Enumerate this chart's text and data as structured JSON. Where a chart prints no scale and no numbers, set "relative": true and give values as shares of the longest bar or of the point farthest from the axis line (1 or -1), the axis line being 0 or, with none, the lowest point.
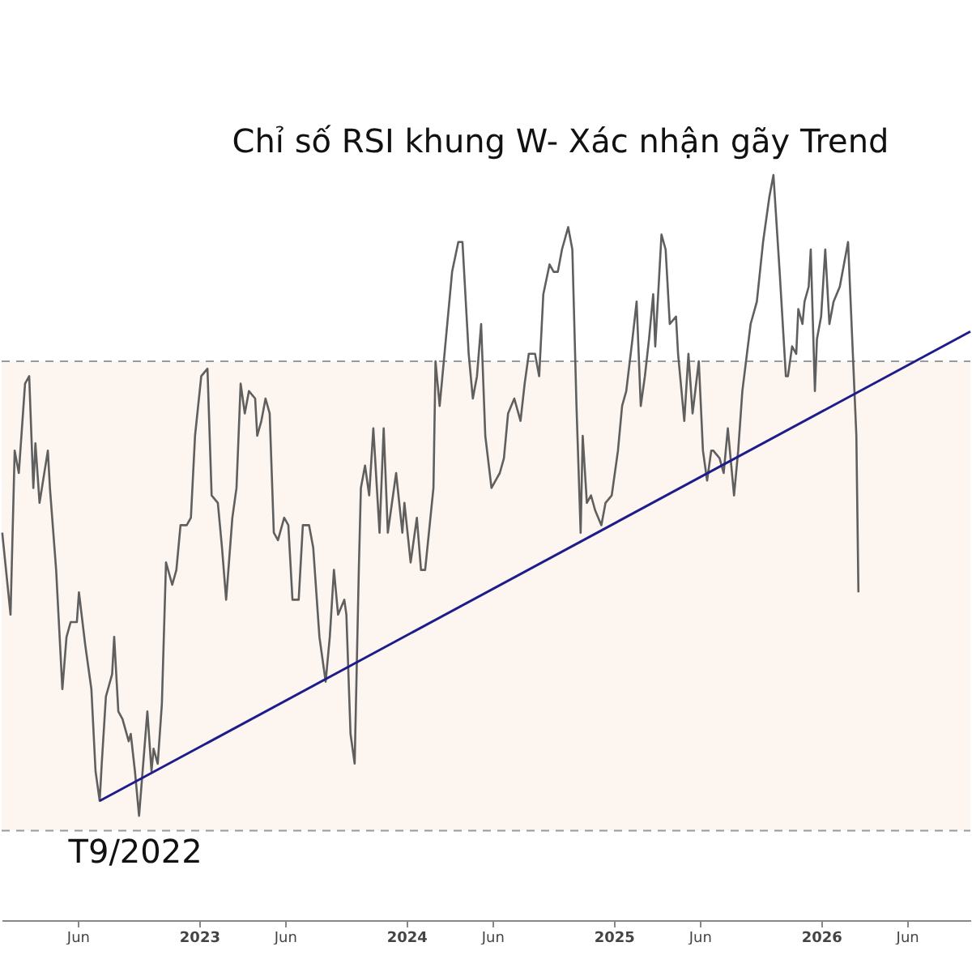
{
  "chart_data": {
    "type": "line",
    "title": "Chỉ số RSI khung W- Xác nhận gãy Trend",
    "relative": true,
    "xlim": [
      2022.047,
      2026.72
    ],
    "xticks": [
      {
        "value": 2022.414,
        "label": "Jun"
      },
      2023,
      {
        "value": 2023.414,
        "label": "Jun"
      },
      2024,
      {
        "value": 2024.414,
        "label": "Jun"
      },
      2025,
      {
        "value": 2025.414,
        "label": "Jun"
      },
      2026,
      {
        "value": 2026.414,
        "label": "Jun"
      }
    ],
    "grid": false,
    "marker": "none",
    "line_style": "solid",
    "series": [
      {
        "color": "#5f5f5f",
        "x": [
          2022.05,
          2022.09,
          2022.11,
          2022.13,
          2022.16,
          2022.18,
          2022.2,
          2022.21,
          2022.23,
          2022.27,
          2022.28,
          2022.31,
          2022.34,
          2022.36,
          2022.38,
          2022.41,
          2022.42,
          2022.45,
          2022.48,
          2022.5,
          2022.52,
          2022.53,
          2022.55,
          2022.58,
          2022.59,
          2022.61,
          2022.63,
          2022.66,
          2022.67,
          2022.69,
          2022.71,
          2022.73,
          2022.75,
          2022.77,
          2022.78,
          2022.8,
          2022.82,
          2022.84,
          2022.87,
          2022.89,
          2022.91,
          2022.94,
          2022.96,
          2022.98,
          2023.01,
          2023.04,
          2023.06,
          2023.09,
          2023.11,
          2023.13,
          2023.16,
          2023.18,
          2023.2,
          2023.22,
          2023.24,
          2023.27,
          2023.28,
          2023.3,
          2023.32,
          2023.34,
          2023.36,
          2023.38,
          2023.41,
          2023.43,
          2023.45,
          2023.48,
          2023.5,
          2023.53,
          2023.55,
          2023.58,
          2023.61,
          2023.63,
          2023.65,
          2023.67,
          2023.7,
          2023.71,
          2023.73,
          2023.75,
          2023.77,
          2023.78,
          2023.8,
          2023.82,
          2023.84,
          2023.87,
          2023.89,
          2023.91,
          2023.93,
          2023.95,
          2023.98,
          2023.99,
          2024.02,
          2024.05,
          2024.07,
          2024.09,
          2024.13,
          2024.14,
          2024.16,
          2024.19,
          2024.22,
          2024.25,
          2024.27,
          2024.3,
          2024.32,
          2024.34,
          2024.36,
          2024.38,
          2024.41,
          2024.43,
          2024.45,
          2024.47,
          2024.49,
          2024.52,
          2024.55,
          2024.57,
          2024.59,
          2024.62,
          2024.64,
          2024.66,
          2024.69,
          2024.71,
          2024.73,
          2024.75,
          2024.78,
          2024.8,
          2024.82,
          2024.84,
          2024.85,
          2024.87,
          2024.89,
          2024.91,
          2024.94,
          2024.96,
          2024.99,
          2025.02,
          2025.04,
          2025.06,
          2025.09,
          2025.11,
          2025.13,
          2025.15,
          2025.17,
          2025.19,
          2025.2,
          2025.23,
          2025.25,
          2025.27,
          2025.3,
          2025.31,
          2025.34,
          2025.36,
          2025.38,
          2025.41,
          2025.43,
          2025.45,
          2025.47,
          2025.48,
          2025.51,
          2025.53,
          2025.55,
          2025.58,
          2025.6,
          2025.62,
          2025.66,
          2025.69,
          2025.72,
          2025.75,
          2025.77,
          2025.8,
          2025.83,
          2025.84,
          2025.86,
          2025.88,
          2025.89,
          2025.91,
          2025.92,
          2025.94,
          2025.95,
          2025.97,
          2025.98,
          2026.0,
          2026.02,
          2026.04,
          2026.06,
          2026.09,
          2026.11,
          2026.13,
          2026.15,
          2026.17,
          2026.18
        ],
        "values": [
          0.52,
          0.41,
          0.63,
          0.6,
          0.72,
          0.73,
          0.58,
          0.64,
          0.56,
          0.63,
          0.58,
          0.47,
          0.31,
          0.38,
          0.4,
          0.4,
          0.44,
          0.37,
          0.31,
          0.2,
          0.16,
          0.21,
          0.3,
          0.33,
          0.38,
          0.28,
          0.27,
          0.24,
          0.25,
          0.2,
          0.14,
          0.21,
          0.28,
          0.2,
          0.23,
          0.21,
          0.29,
          0.48,
          0.45,
          0.47,
          0.53,
          0.53,
          0.54,
          0.65,
          0.73,
          0.74,
          0.57,
          0.56,
          0.5,
          0.43,
          0.54,
          0.58,
          0.72,
          0.68,
          0.71,
          0.7,
          0.65,
          0.67,
          0.7,
          0.68,
          0.52,
          0.51,
          0.54,
          0.53,
          0.43,
          0.43,
          0.53,
          0.53,
          0.5,
          0.38,
          0.32,
          0.38,
          0.47,
          0.41,
          0.43,
          0.41,
          0.25,
          0.21,
          0.47,
          0.58,
          0.61,
          0.57,
          0.66,
          0.52,
          0.66,
          0.52,
          0.56,
          0.6,
          0.52,
          0.56,
          0.48,
          0.54,
          0.47,
          0.47,
          0.58,
          0.75,
          0.69,
          0.78,
          0.87,
          0.91,
          0.91,
          0.76,
          0.7,
          0.73,
          0.8,
          0.65,
          0.58,
          0.59,
          0.6,
          0.62,
          0.68,
          0.7,
          0.67,
          0.72,
          0.76,
          0.76,
          0.73,
          0.84,
          0.88,
          0.87,
          0.87,
          0.9,
          0.93,
          0.9,
          0.69,
          0.52,
          0.65,
          0.56,
          0.57,
          0.55,
          0.53,
          0.56,
          0.57,
          0.63,
          0.69,
          0.71,
          0.78,
          0.83,
          0.69,
          0.73,
          0.78,
          0.84,
          0.77,
          0.92,
          0.9,
          0.8,
          0.81,
          0.76,
          0.67,
          0.76,
          0.68,
          0.75,
          0.63,
          0.59,
          0.63,
          0.63,
          0.62,
          0.6,
          0.66,
          0.57,
          0.63,
          0.71,
          0.8,
          0.83,
          0.91,
          0.97,
          1.0,
          0.87,
          0.73,
          0.73,
          0.77,
          0.76,
          0.82,
          0.8,
          0.83,
          0.85,
          0.9,
          0.71,
          0.78,
          0.81,
          0.9,
          0.8,
          0.83,
          0.85,
          0.88,
          0.91,
          0.78,
          0.65,
          0.44
        ]
      },
      {
        "type": "line",
        "color": "#1c1c8c",
        "x": [
          2022.52,
          2026.72
        ],
        "values": [
          0.16,
          0.79
        ]
      }
    ],
    "ref_lines": [
      {
        "axis": "y",
        "value": 0.75,
        "color": "#9a9a9a",
        "line_style": "dashed"
      },
      {
        "axis": "y",
        "value": 0.12,
        "color": "#9a9a9a",
        "line_style": "dashed"
      }
    ],
    "bands": [
      {
        "axis": "y",
        "from": 0.12,
        "to": 0.75,
        "color": "#fdf5ef"
      }
    ],
    "annotations": [
      {
        "text": "T9/2022",
        "x": 2022.52,
        "y": 0.16
      }
    ]
  }
}
